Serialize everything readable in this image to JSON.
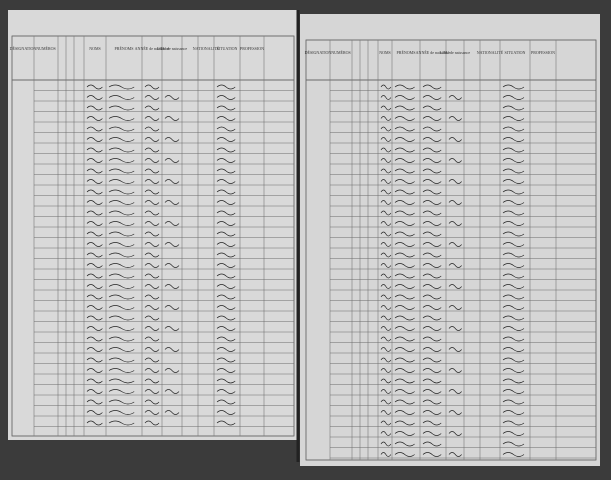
{
  "left_page": {
    "headers": [
      "DÉSIGNATION",
      "NUMÉROS",
      "NOMS",
      "PRÉNOMS",
      "ANNÉE de naissance",
      "LIEU de naissance",
      "NATIONALITÉ",
      "SITUATION",
      "PROFESSION"
    ]
  },
  "right_page": {
    "headers": [
      "DÉSIGNATION",
      "NUMÉROS",
      "NOMS",
      "PRÉNOMS",
      "ANNÉE de naissance",
      "LIEU de naissance",
      "NATIONALITÉ",
      "SITUATION",
      "PROFESSION"
    ]
  }
}
